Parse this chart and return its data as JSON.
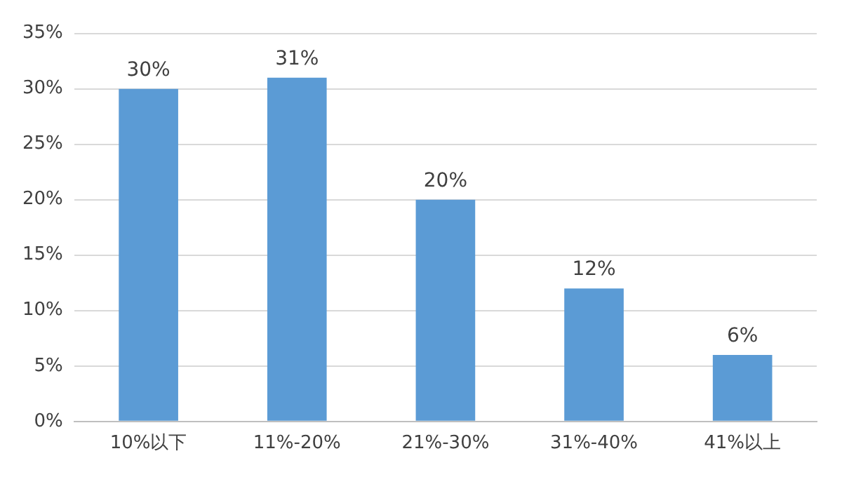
{
  "chart_data": {
    "type": "bar",
    "categories": [
      "10%以下",
      "11%-20%",
      "21%-30%",
      "31%-40%",
      "41%以上"
    ],
    "values": [
      30,
      31,
      20,
      12,
      6
    ],
    "value_labels": [
      "30%",
      "31%",
      "20%",
      "12%",
      "6%"
    ],
    "color": "#5b9bd5",
    "ylim": [
      0,
      35
    ],
    "yticks": [
      {
        "value": 0,
        "label": "0%"
      },
      {
        "value": 5,
        "label": "5%"
      },
      {
        "value": 10,
        "label": "10%"
      },
      {
        "value": 15,
        "label": "15%"
      },
      {
        "value": 20,
        "label": "20%"
      },
      {
        "value": 25,
        "label": "25%"
      },
      {
        "value": 30,
        "label": "30%"
      },
      {
        "value": 35,
        "label": "35%"
      }
    ],
    "grid": "y"
  }
}
